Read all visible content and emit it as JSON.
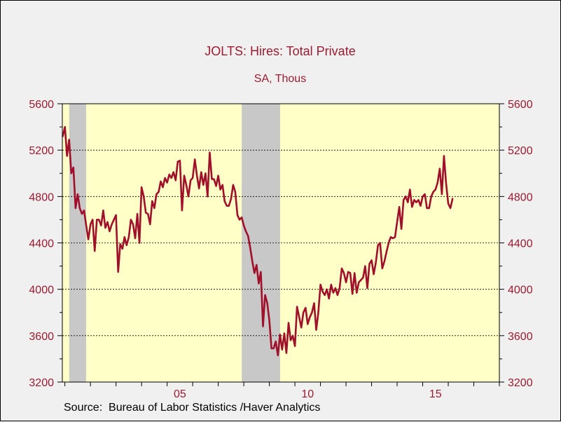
{
  "colors": {
    "background": "#f0f0f0",
    "plot_background": "#ffffc8",
    "recession_shade": "#c8c8c8",
    "series_line": "#a0102a",
    "text": "#9b1b30"
  },
  "chart_data": {
    "type": "line",
    "title": "JOLTS: Hires: Total Private",
    "subtitle": "SA, Thous",
    "source": "Source:  Bureau of Labor Statistics /Haver Analytics",
    "grid": "horizontal dotted",
    "ylim": [
      3200,
      5600
    ],
    "yticks": [
      "3200",
      "3600",
      "4000",
      "4400",
      "4800",
      "5200",
      "5600"
    ],
    "xlim": [
      2000.9,
      2018.0
    ],
    "xticks": [
      {
        "label": "05",
        "value": 2005
      },
      {
        "label": "10",
        "value": 2010
      },
      {
        "label": "15",
        "value": 2015
      }
    ],
    "recessions": [
      {
        "start": 2001.17,
        "end": 2001.83
      },
      {
        "start": 2007.92,
        "end": 2009.42
      }
    ],
    "series": [
      {
        "start": 2000.917,
        "step_months": 1,
        "values": [
          5320,
          5400,
          5150,
          5290,
          5000,
          5050,
          4700,
          4820,
          4700,
          4650,
          4680,
          4550,
          4430,
          4560,
          4600,
          4330,
          4600,
          4600,
          4550,
          4680,
          4530,
          4580,
          4500,
          4560,
          4600,
          4640,
          4150,
          4390,
          4350,
          4450,
          4380,
          4450,
          4600,
          4560,
          4440,
          4650,
          4400,
          4880,
          4800,
          4660,
          4650,
          4560,
          4760,
          4700,
          4820,
          4840,
          4930,
          4880,
          4960,
          4920,
          4990,
          4960,
          5010,
          4940,
          5100,
          5110,
          4680,
          4980,
          4900,
          4800,
          4940,
          4960,
          5120,
          4980,
          4870,
          5010,
          4900,
          5000,
          4800,
          5180,
          4950,
          4950,
          4890,
          4980,
          4860,
          4900,
          4760,
          4720,
          4720,
          4780,
          4900,
          4840,
          4640,
          4600,
          4620,
          4550,
          4500,
          4460,
          4360,
          4240,
          4140,
          4210,
          4050,
          4150,
          3680,
          3950,
          3880,
          3730,
          3490,
          3490,
          3550,
          3430,
          3610,
          3480,
          3620,
          3450,
          3710,
          3560,
          3600,
          3510,
          3850,
          3760,
          3670,
          3800,
          3840,
          3700,
          3760,
          3800,
          3880,
          3650,
          3800,
          4040,
          3980,
          3950,
          4000,
          3920,
          4040,
          3970,
          4010,
          3950,
          4010,
          4180,
          4140,
          4060,
          4150,
          4140,
          3960,
          4140,
          3970,
          4060,
          4080,
          4100,
          4200,
          4010,
          4220,
          4250,
          4130,
          4230,
          4380,
          4400,
          4180,
          4240,
          4320,
          4400,
          4450,
          4440,
          4450,
          4580,
          4710,
          4520,
          4770,
          4800,
          4750,
          4860,
          4710,
          4770,
          4750,
          4770,
          4720,
          4800,
          4820,
          4700,
          4700,
          4800,
          4840,
          4860,
          4920,
          5040,
          4820,
          5150,
          4910,
          4740,
          4700,
          4780
        ]
      }
    ]
  }
}
